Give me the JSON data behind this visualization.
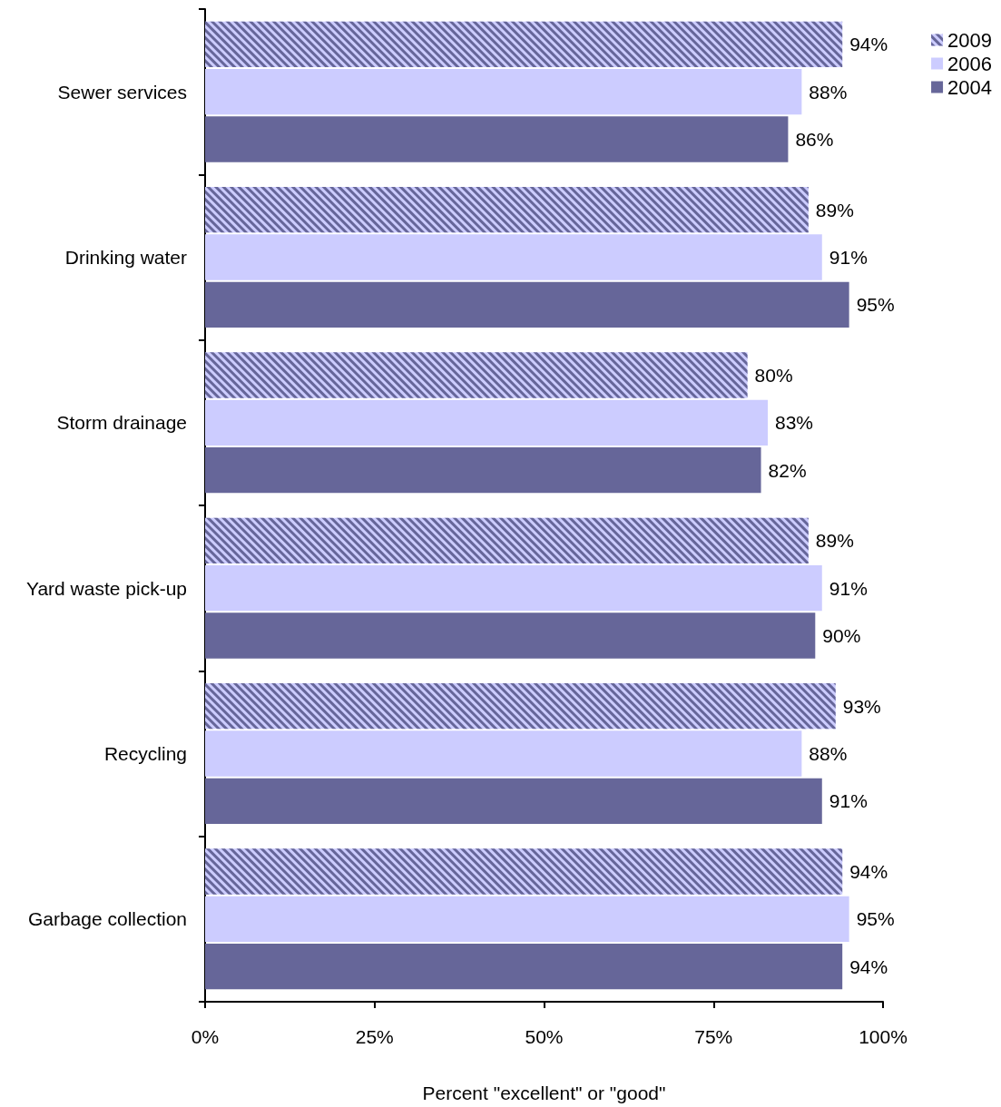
{
  "chart_data": {
    "type": "bar",
    "orientation": "horizontal",
    "categories": [
      "Sewer services",
      "Drinking water",
      "Storm drainage",
      "Yard waste pick-up",
      "Recycling",
      "Garbage collection"
    ],
    "series": [
      {
        "name": "2009",
        "color": "#666699",
        "values": [
          94,
          89,
          80,
          89,
          93,
          94
        ],
        "value_labels": [
          "94%",
          "89%",
          "80%",
          "89%",
          "93%",
          "94%"
        ]
      },
      {
        "name": "2006",
        "color": "#ccccff",
        "values": [
          88,
          91,
          83,
          91,
          88,
          95
        ],
        "value_labels": [
          "88%",
          "91%",
          "83%",
          "91%",
          "88%",
          "95%"
        ]
      },
      {
        "name": "2004",
        "color": "#666699",
        "values": [
          86,
          95,
          82,
          90,
          91,
          94
        ],
        "value_labels": [
          "86%",
          "95%",
          "82%",
          "90%",
          "91%",
          "94%"
        ]
      }
    ],
    "xlabel": "Percent \"excellent\" or \"good\"",
    "xlim": [
      0,
      100
    ],
    "xticks": [
      {
        "value": 0,
        "label": "0%"
      },
      {
        "value": 25,
        "label": "25%"
      },
      {
        "value": 50,
        "label": "50%"
      },
      {
        "value": 75,
        "label": "75%"
      },
      {
        "value": 100,
        "label": "100%"
      }
    ],
    "legend": "top right",
    "grid": false
  }
}
